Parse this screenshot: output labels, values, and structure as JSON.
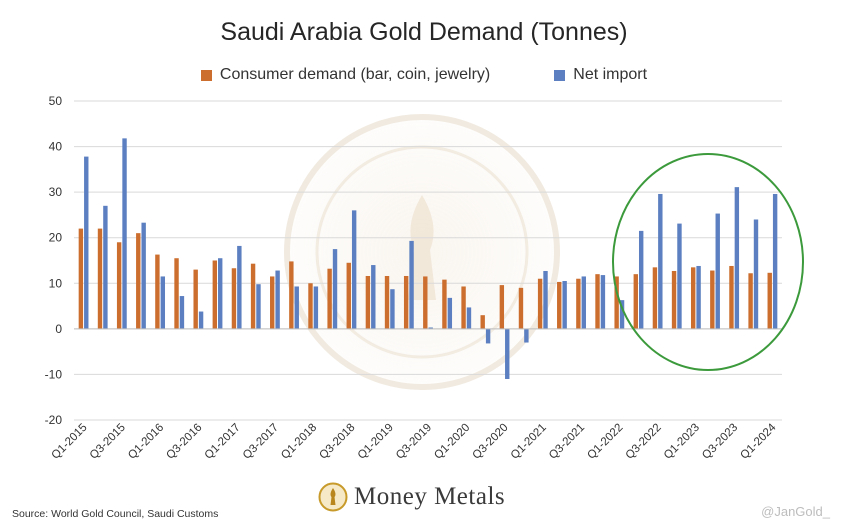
{
  "chart_data": {
    "type": "bar",
    "title": "Saudi Arabia Gold Demand (Tonnes)",
    "xlabel": "",
    "ylabel": "",
    "ylim": [
      -20,
      50
    ],
    "yticks": [
      -20,
      -10,
      0,
      10,
      20,
      30,
      40,
      50
    ],
    "grid": true,
    "legend_position": "top",
    "categories": [
      "Q1-2015",
      "Q2-2015",
      "Q3-2015",
      "Q4-2015",
      "Q1-2016",
      "Q2-2016",
      "Q3-2016",
      "Q4-2016",
      "Q1-2017",
      "Q2-2017",
      "Q3-2017",
      "Q4-2017",
      "Q1-2018",
      "Q2-2018",
      "Q3-2018",
      "Q4-2018",
      "Q1-2019",
      "Q2-2019",
      "Q3-2019",
      "Q4-2019",
      "Q1-2020",
      "Q2-2020",
      "Q3-2020",
      "Q4-2020",
      "Q1-2021",
      "Q2-2021",
      "Q3-2021",
      "Q4-2021",
      "Q1-2022",
      "Q2-2022",
      "Q3-2022",
      "Q4-2022",
      "Q1-2023",
      "Q2-2023",
      "Q3-2023",
      "Q4-2023",
      "Q1-2024"
    ],
    "tick_labels": [
      "Q1-2015",
      "",
      "Q3-2015",
      "",
      "Q1-2016",
      "",
      "Q3-2016",
      "",
      "Q1-2017",
      "",
      "Q3-2017",
      "",
      "Q1-2018",
      "",
      "Q3-2018",
      "",
      "Q1-2019",
      "",
      "Q3-2019",
      "",
      "Q1-2020",
      "",
      "Q3-2020",
      "",
      "Q1-2021",
      "",
      "Q3-2021",
      "",
      "Q1-2022",
      "",
      "Q3-2022",
      "",
      "Q1-2023",
      "",
      "Q3-2023",
      "",
      "Q1-2024"
    ],
    "series": [
      {
        "name": "Consumer demand (bar, coin, jewelry)",
        "color": "#cc6e2e",
        "values": [
          22,
          22,
          19,
          21,
          16.3,
          15.5,
          13,
          15,
          13.3,
          14.3,
          11.5,
          14.8,
          10,
          13.2,
          14.5,
          11.6,
          11.6,
          11.6,
          11.5,
          10.8,
          9.3,
          3,
          9.6,
          9,
          11,
          10.3,
          11,
          12,
          11.5,
          12,
          13.5,
          12.7,
          13.5,
          12.8,
          13.8,
          12.2,
          12.3
        ]
      },
      {
        "name": "Net import",
        "color": "#5b7fc0",
        "values": [
          37.8,
          27,
          41.8,
          23.3,
          11.5,
          7.2,
          3.8,
          15.5,
          18.2,
          9.8,
          12.8,
          9.3,
          9.3,
          17.5,
          26,
          14,
          8.7,
          19.3,
          0.3,
          6.8,
          4.7,
          -3.2,
          -11,
          -3,
          12.7,
          10.5,
          11.5,
          11.8,
          6.3,
          21.5,
          29.6,
          23.1,
          13.8,
          25.3,
          31.1,
          24,
          29.6
        ]
      }
    ]
  },
  "legend": {
    "item1": "Consumer demand (bar, coin, jewelry)",
    "item2": "Net import",
    "color1": "#cc6e2e",
    "color2": "#5b7fc0"
  },
  "footer": {
    "source": "Source: World Gold Council, Saudi Customs",
    "brand": "Money Metals",
    "credit": "@JanGold_"
  }
}
